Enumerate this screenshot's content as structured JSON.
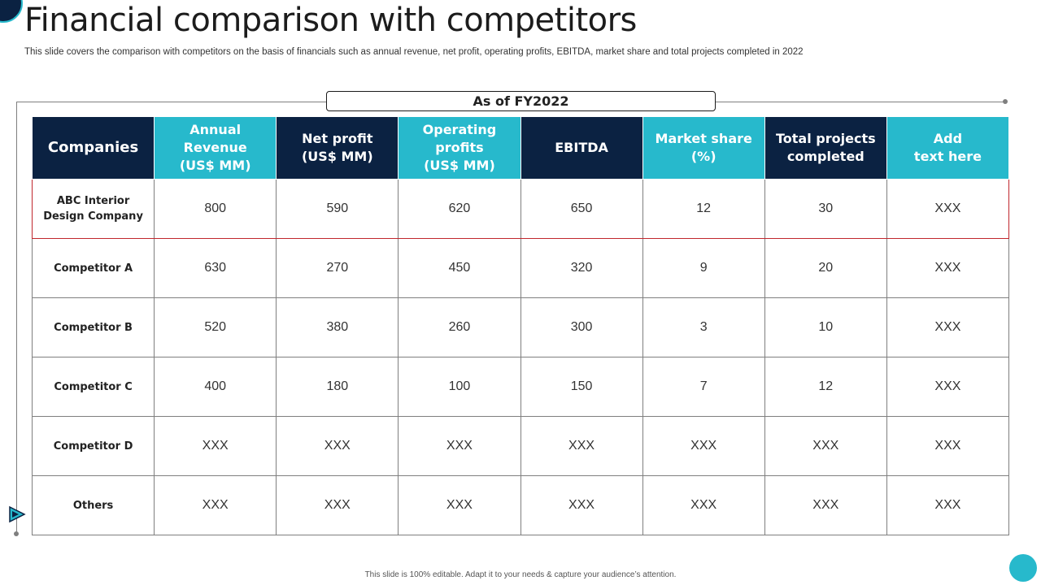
{
  "slide": {
    "title": "Financial comparison with competitors",
    "subtitle": "This slide covers the comparison with competitors on the basis of financials such as annual revenue, net profit, operating profits, EBITDA,  market share and total projects completed in 2022",
    "period_label": "As of FY2022",
    "footer": "This slide is 100% editable.  Adapt it to your needs & capture your audience’s attention."
  },
  "colors": {
    "navy": "#0b2242",
    "teal": "#27b9cc",
    "highlight_border": "#c0272d"
  },
  "table": {
    "headers": [
      {
        "label": "Companies",
        "style": "dark"
      },
      {
        "label": "Annual Revenue\n(US$ MM)",
        "style": "teal"
      },
      {
        "label": "Net profit\n(US$ MM)",
        "style": "dark"
      },
      {
        "label": "Operating\nprofits\n(US$ MM)",
        "style": "teal"
      },
      {
        "label": "EBITDA",
        "style": "dark"
      },
      {
        "label": "Market share\n(%)",
        "style": "teal"
      },
      {
        "label": "Total projects\ncompleted",
        "style": "dark"
      },
      {
        "label": "Add\ntext here",
        "style": "teal"
      }
    ],
    "rows": [
      {
        "company": "ABC Interior\nDesign Company",
        "highlight": true,
        "values": [
          "800",
          "590",
          "620",
          "650",
          "12",
          "30",
          "XXX"
        ]
      },
      {
        "company": "Competitor A",
        "highlight": false,
        "values": [
          "630",
          "270",
          "450",
          "320",
          "9",
          "20",
          "XXX"
        ]
      },
      {
        "company": "Competitor B",
        "highlight": false,
        "values": [
          "520",
          "380",
          "260",
          "300",
          "3",
          "10",
          "XXX"
        ]
      },
      {
        "company": "Competitor C",
        "highlight": false,
        "values": [
          "400",
          "180",
          "100",
          "150",
          "7",
          "12",
          "XXX"
        ]
      },
      {
        "company": "Competitor D",
        "highlight": false,
        "values": [
          "XXX",
          "XXX",
          "XXX",
          "XXX",
          "XXX",
          "XXX",
          "XXX"
        ]
      },
      {
        "company": "Others",
        "highlight": false,
        "values": [
          "XXX",
          "XXX",
          "XXX",
          "XXX",
          "XXX",
          "XXX",
          "XXX"
        ]
      }
    ]
  }
}
